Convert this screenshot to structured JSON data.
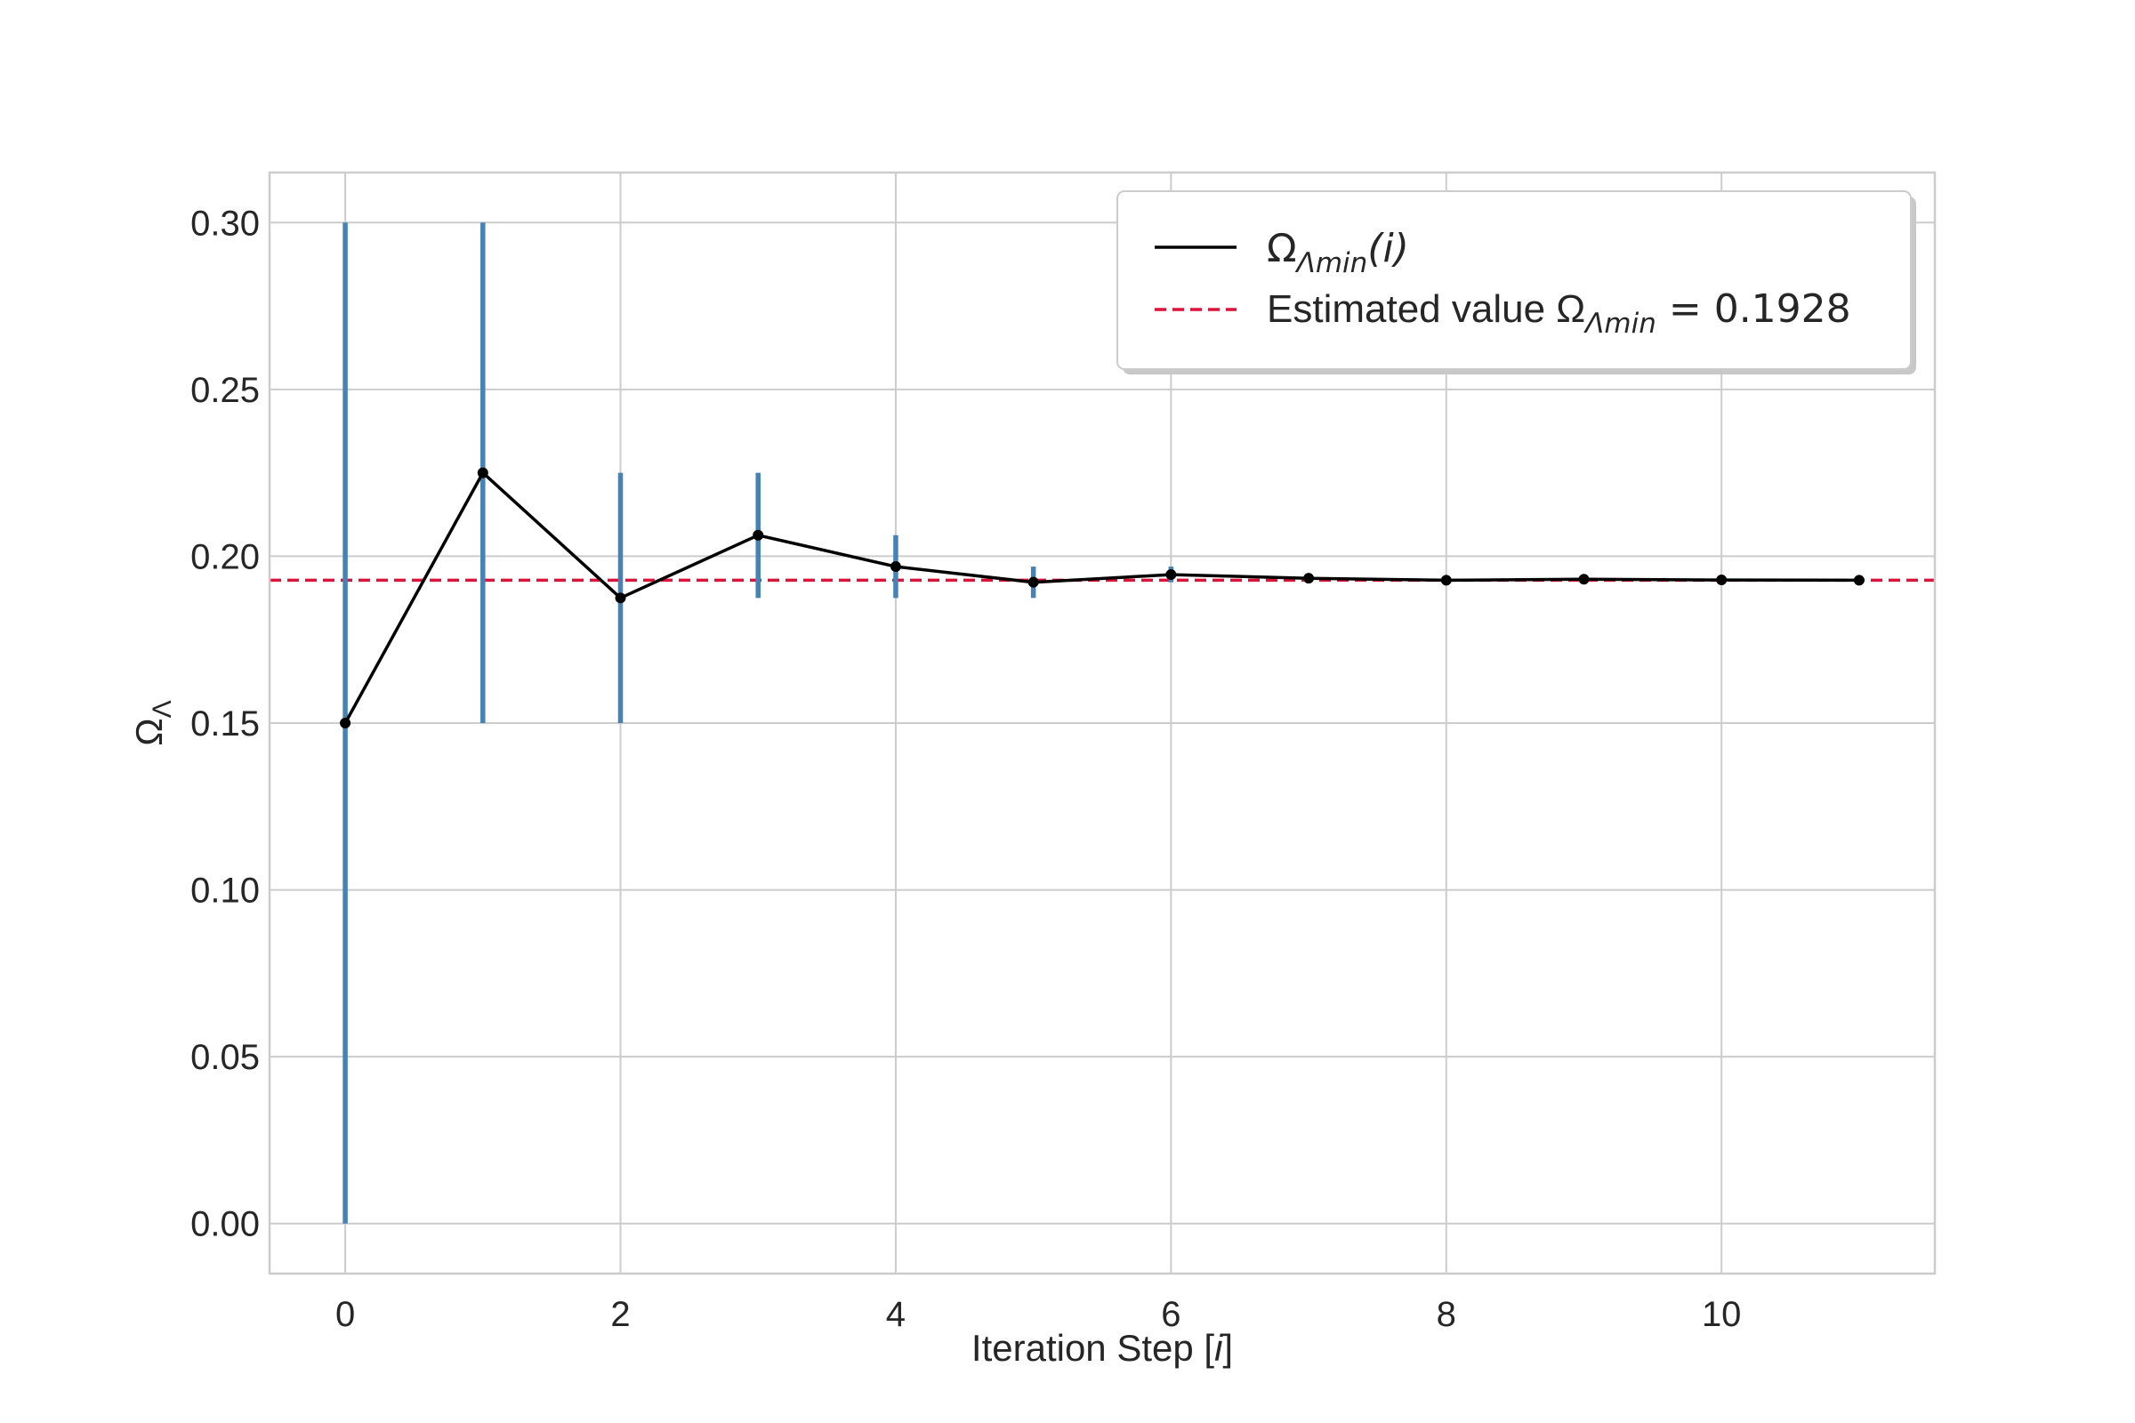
{
  "chart_data": {
    "type": "line",
    "xlabel_main": "Iteration Step [",
    "xlabel_var": "i",
    "xlabel_end": "]",
    "ylabel_main": "Ω",
    "ylabel_sub": "Λ",
    "xlim": [
      -0.55,
      11.55
    ],
    "ylim": [
      -0.015,
      0.315
    ],
    "xticks": [
      0,
      2,
      4,
      6,
      8,
      10
    ],
    "xtick_labels": [
      "0",
      "2",
      "4",
      "6",
      "8",
      "10"
    ],
    "yticks": [
      0.0,
      0.05,
      0.1,
      0.15,
      0.2,
      0.25,
      0.3
    ],
    "ytick_labels": [
      "0.00",
      "0.05",
      "0.10",
      "0.15",
      "0.20",
      "0.25",
      "0.30"
    ],
    "grid": true,
    "legend_position": "top-right",
    "series": [
      {
        "name_main": "Ω",
        "name_sub": "Λmin",
        "name_arg": "(i)",
        "color": "#000000",
        "x": [
          0,
          1,
          2,
          3,
          4,
          5,
          6,
          7,
          8,
          9,
          10,
          11
        ],
        "y": [
          0.15,
          0.225,
          0.1875,
          0.2063,
          0.1969,
          0.1922,
          0.1945,
          0.1934,
          0.1928,
          0.1931,
          0.1929,
          0.1928
        ]
      }
    ],
    "error_bars": {
      "color": "#4682b4",
      "x": [
        0,
        1,
        2,
        3,
        4,
        5,
        6,
        7,
        8,
        9,
        10,
        11
      ],
      "low": [
        0.0,
        0.15,
        0.15,
        0.1875,
        0.1875,
        0.1875,
        0.1922,
        0.1922,
        0.1922,
        0.1928,
        0.1928,
        0.1928
      ],
      "high": [
        0.3,
        0.3,
        0.225,
        0.225,
        0.2063,
        0.1969,
        0.1969,
        0.1945,
        0.1934,
        0.1934,
        0.1931,
        0.1929
      ]
    },
    "reference_line": {
      "label_prefix": "Estimated value Ω",
      "label_sub": "Λmin",
      "label_value": "= 0.1928",
      "y": 0.1928,
      "color": "#dc143c",
      "style": "dashed"
    }
  }
}
